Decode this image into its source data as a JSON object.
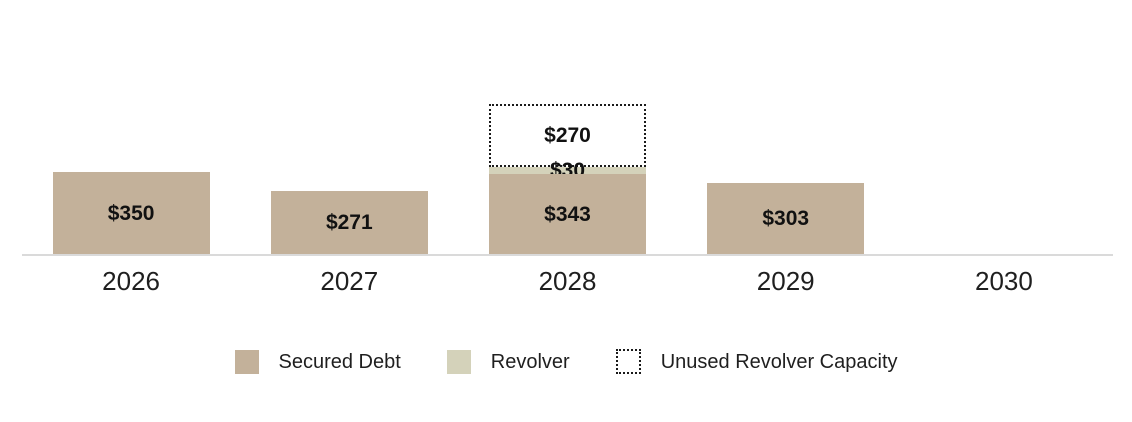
{
  "chart_data": {
    "type": "bar",
    "stacked": true,
    "title": "",
    "xlabel": "",
    "ylabel": "",
    "grid": false,
    "legend_position": "bottom",
    "axis_line_color": "#dadada",
    "label_color": "#1f1f1f",
    "value_label_color": "#111111",
    "categories": [
      "2026",
      "2027",
      "2028",
      "2029",
      "2030"
    ],
    "series": [
      {
        "name": "Secured Debt",
        "color": "#c3b19a",
        "swatch_style": "solid",
        "values": [
          350,
          271,
          343,
          303,
          null
        ],
        "labels": [
          "$350",
          "$271",
          "$343",
          "$303",
          null
        ]
      },
      {
        "name": "Revolver",
        "color": "#d4d2ba",
        "swatch_style": "solid",
        "values": [
          null,
          null,
          30,
          null,
          null
        ],
        "labels": [
          null,
          null,
          "$30",
          null,
          null
        ]
      },
      {
        "name": "Unused Revolver Capacity",
        "color": "#ffffff",
        "border_color": "#1a1a1a",
        "swatch_style": "dotted-outline",
        "values": [
          null,
          null,
          270,
          null,
          null
        ],
        "labels": [
          null,
          null,
          "$270",
          null,
          null
        ]
      }
    ]
  },
  "legend": {
    "items": [
      {
        "label": "Secured Debt",
        "swatch_style": "solid",
        "color": "#c3b19a"
      },
      {
        "label": "Revolver",
        "swatch_style": "solid",
        "color": "#d4d2ba"
      },
      {
        "label": "Unused Revolver Capacity",
        "swatch_style": "dotted-outline",
        "color": "#ffffff",
        "border_color": "#1a1a1a"
      }
    ]
  }
}
